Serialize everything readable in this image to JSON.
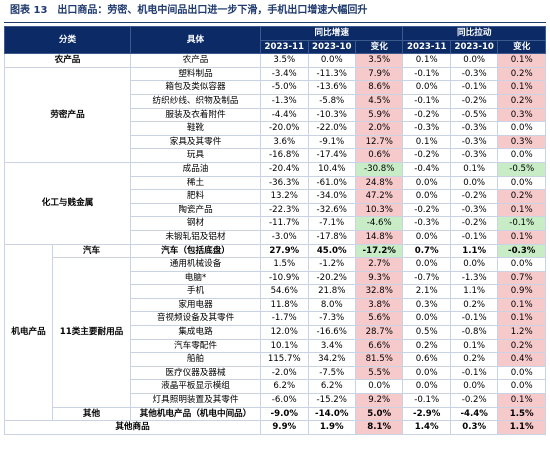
{
  "title": "图表 13　出口商品：劳密、机电中间品出口进一步下滑，手机出口增速大幅回升",
  "header": {
    "category": "分类",
    "item": "具体",
    "groups": [
      "同比增速",
      "同比拉动"
    ],
    "periods": [
      "2023-11",
      "2023-10",
      "变化",
      "2023-11",
      "2023-10",
      "变化"
    ]
  },
  "groups": [
    {
      "label": "农产品",
      "rows": [
        {
          "name": "农产品",
          "cells": [
            "3.5%",
            "0.0%",
            "3.5%",
            "0.1%",
            "0.0%",
            "0.1%"
          ]
        }
      ]
    },
    {
      "label": "劳密产品",
      "rows": [
        {
          "name": "塑料制品",
          "cells": [
            "-3.4%",
            "-11.3%",
            "7.9%",
            "-0.1%",
            "-0.3%",
            "0.2%"
          ]
        },
        {
          "name": "箱包及类似容器",
          "cells": [
            "-5.0%",
            "-13.6%",
            "8.6%",
            "0.0%",
            "-0.1%",
            "0.1%"
          ]
        },
        {
          "name": "纺织纱线、织物及制品",
          "cells": [
            "-1.3%",
            "-5.8%",
            "4.5%",
            "-0.1%",
            "-0.2%",
            "0.2%"
          ]
        },
        {
          "name": "服装及衣着附件",
          "cells": [
            "-4.4%",
            "-10.3%",
            "5.9%",
            "-0.2%",
            "-0.5%",
            "0.3%"
          ]
        },
        {
          "name": "鞋靴",
          "cells": [
            "-20.0%",
            "-22.0%",
            "2.0%",
            "-0.3%",
            "-0.3%",
            "0.0%"
          ]
        },
        {
          "name": "家具及其零件",
          "cells": [
            "3.6%",
            "-9.1%",
            "12.7%",
            "0.1%",
            "-0.3%",
            "0.3%"
          ]
        },
        {
          "name": "玩具",
          "cells": [
            "-16.8%",
            "-17.4%",
            "0.6%",
            "-0.2%",
            "-0.3%",
            "0.0%"
          ]
        }
      ]
    },
    {
      "label": "化工与贱金属",
      "rows": [
        {
          "name": "成品油",
          "cells": [
            "-20.4%",
            "10.4%",
            "-30.8%",
            "-0.4%",
            "0.1%",
            "-0.5%"
          ]
        },
        {
          "name": "稀土",
          "cells": [
            "-36.3%",
            "-61.0%",
            "24.8%",
            "0.0%",
            "0.0%",
            "0.0%"
          ]
        },
        {
          "name": "肥料",
          "cells": [
            "13.2%",
            "-34.0%",
            "47.2%",
            "0.0%",
            "-0.2%",
            "0.2%"
          ]
        },
        {
          "name": "陶瓷产品",
          "cells": [
            "-22.3%",
            "-32.6%",
            "10.3%",
            "-0.2%",
            "-0.3%",
            "0.1%"
          ]
        },
        {
          "name": "钢材",
          "cells": [
            "-11.7%",
            "-7.1%",
            "-4.6%",
            "-0.3%",
            "-0.2%",
            "-0.1%"
          ]
        },
        {
          "name": "未锻轧铝及铝材",
          "cells": [
            "-3.0%",
            "-17.8%",
            "14.8%",
            "0.0%",
            "-0.1%",
            "0.1%"
          ]
        }
      ]
    },
    {
      "label": "机电产品",
      "subgroups": [
        {
          "label": "汽车",
          "rows": [
            {
              "name": "汽车（包括底盘）",
              "cells": [
                "27.9%",
                "45.0%",
                "-17.2%",
                "0.7%",
                "1.1%",
                "-0.3%"
              ]
            }
          ]
        },
        {
          "label": "11类主要耐用品",
          "rows": [
            {
              "name": "通用机械设备",
              "cells": [
                "1.5%",
                "-1.2%",
                "2.7%",
                "0.0%",
                "0.0%",
                "0.0%"
              ]
            },
            {
              "name": "电脑*",
              "cells": [
                "-10.9%",
                "-20.2%",
                "9.3%",
                "-0.7%",
                "-1.3%",
                "0.7%"
              ]
            },
            {
              "name": "手机",
              "cells": [
                "54.6%",
                "21.8%",
                "32.8%",
                "2.1%",
                "1.1%",
                "0.9%"
              ]
            },
            {
              "name": "家用电器",
              "cells": [
                "11.8%",
                "8.0%",
                "3.8%",
                "0.3%",
                "0.2%",
                "0.1%"
              ]
            },
            {
              "name": "音视频设备及其零件",
              "cells": [
                "-1.7%",
                "-7.3%",
                "5.6%",
                "0.0%",
                "-0.1%",
                "0.1%"
              ]
            },
            {
              "name": "集成电路",
              "cells": [
                "12.0%",
                "-16.6%",
                "28.7%",
                "0.5%",
                "-0.8%",
                "1.2%"
              ]
            },
            {
              "name": "汽车零配件",
              "cells": [
                "10.1%",
                "3.4%",
                "6.6%",
                "0.2%",
                "0.1%",
                "0.2%"
              ]
            },
            {
              "name": "船舶",
              "cells": [
                "115.7%",
                "34.2%",
                "81.5%",
                "0.6%",
                "0.2%",
                "0.4%"
              ]
            },
            {
              "name": "医疗仪器及器械",
              "cells": [
                "-2.0%",
                "-7.5%",
                "5.5%",
                "0.0%",
                "-0.1%",
                "0.0%"
              ]
            },
            {
              "name": "液晶平板显示模组",
              "cells": [
                "6.2%",
                "6.2%",
                "0.0%",
                "0.0%",
                "0.0%",
                "0.0%"
              ]
            },
            {
              "name": "灯具照明装置及其零件",
              "cells": [
                "-6.0%",
                "-15.2%",
                "9.2%",
                "-0.1%",
                "-0.2%",
                "0.1%"
              ]
            }
          ]
        },
        {
          "label": "其他",
          "rows": [
            {
              "name": "其他机电产品（机电中间品）",
              "cells": [
                "-9.0%",
                "-14.0%",
                "5.0%",
                "-2.9%",
                "-4.4%",
                "1.5%"
              ]
            }
          ]
        }
      ]
    }
  ],
  "total": {
    "label": "其他商品",
    "cells": [
      "9.9%",
      "1.9%",
      "8.1%",
      "1.4%",
      "0.3%",
      "1.1%"
    ]
  }
}
